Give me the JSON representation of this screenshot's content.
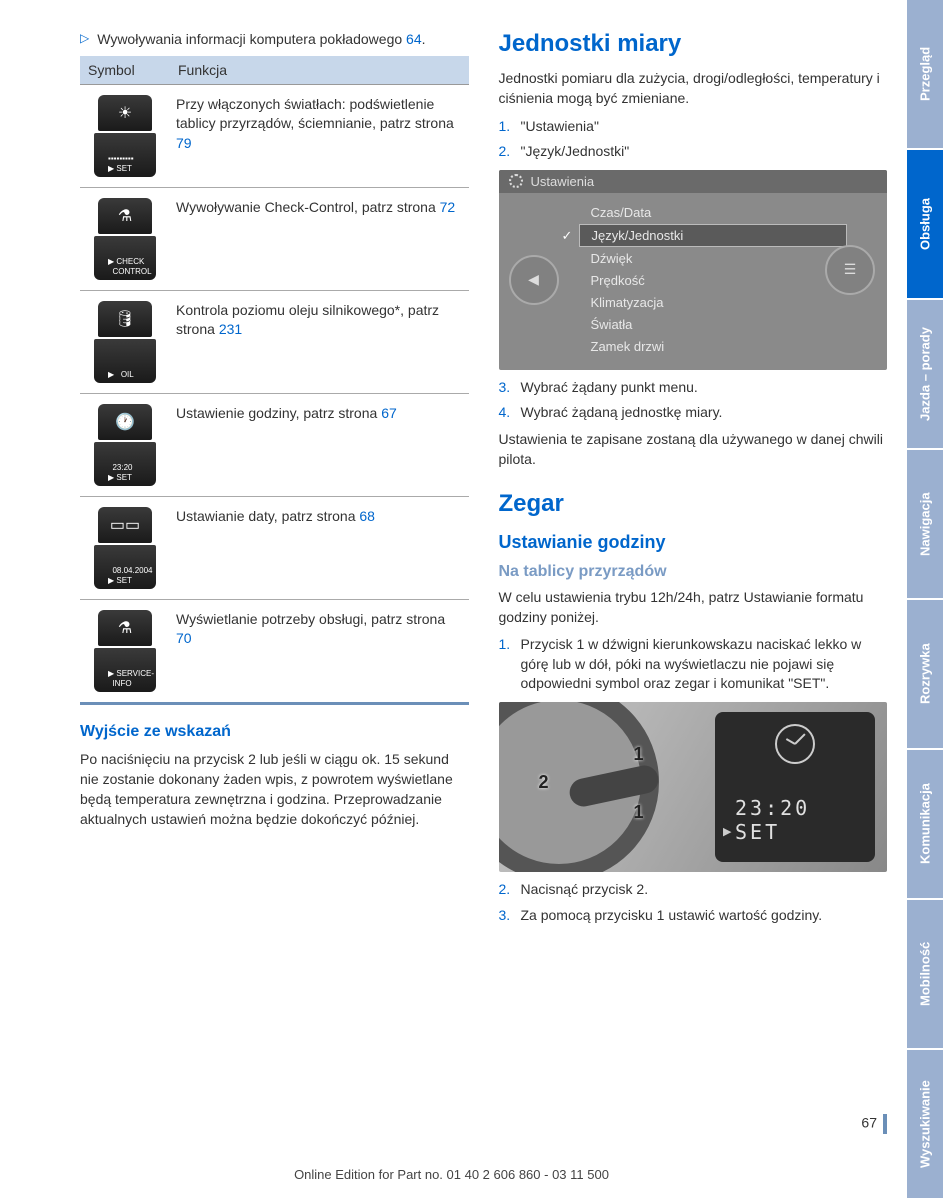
{
  "colors": {
    "link": "#0066cc",
    "heading": "#0066cc",
    "subheading": "#7a9bc4",
    "tableHeader": "#c7d7ea",
    "tableBorder": "#6b8fb8",
    "iconBg": "#2a2a2a",
    "sidebarActive": "#0066cc",
    "sidebarInactive": "#9bb0d0"
  },
  "leftCol": {
    "bulletText": "Wywoływania informacji komputera pokładowego  ",
    "bulletRef": "64",
    "bulletSuffix": ".",
    "table": {
      "headSymbol": "Symbol",
      "headFunc": "Funkcja",
      "rows": [
        {
          "iconTop": "☀",
          "iconBotLines": "▪▪▪▪▪▪▪▪▪\n▶ SET",
          "text": "Przy włączonych światłach: podświetlenie tablicy przyrządów, ściemnianie, patrz strona ",
          "ref": "79"
        },
        {
          "iconTop": "⚗",
          "iconBotLines": "▶ CHECK\n  CONTROL",
          "text": "Wywoływanie Check-Control, patrz strona ",
          "ref": "72"
        },
        {
          "iconTop": "🛢",
          "iconBotLines": "▶   OIL",
          "text": "Kontrola poziomu oleju silnikowego*, patrz strona ",
          "ref": "231"
        },
        {
          "iconTop": "🕐",
          "iconBotLines": "  23:20\n▶ SET",
          "text": "Ustawienie godziny, patrz strona ",
          "ref": "67"
        },
        {
          "iconTop": "▭▭",
          "iconBotLines": "  08.04.2004\n▶ SET",
          "text": "Ustawianie daty, patrz strona ",
          "ref": "68"
        },
        {
          "iconTop": "⚗",
          "iconBotLines": "▶ SERVICE-\n  INFO",
          "text": "Wyświetlanie potrzeby obsługi, patrz strona ",
          "ref": "70"
        }
      ]
    },
    "exitHeading": "Wyjście ze wskazań",
    "exitText": "Po naciśnięciu na przycisk 2 lub jeśli w ciągu ok. 15 sekund nie zostanie dokonany żaden wpis, z powrotem wyświetlane będą temperatura zewnętrzna i godzina. Przeprowadzanie aktualnych ustawień można będzie dokończyć później."
  },
  "rightCol": {
    "h1": "Jednostki miary",
    "intro": "Jednostki pomiaru dla zużycia, drogi/odległości, temperatury i ciśnienia mogą być zmieniane.",
    "steps1": [
      {
        "n": "1.",
        "t": "\"Ustawienia\""
      },
      {
        "n": "2.",
        "t": "\"Język/Jednostki\""
      }
    ],
    "menuScreenshot": {
      "title": "Ustawienia",
      "items": [
        "Czas/Data",
        "Język/Jednostki",
        "Dźwięk",
        "Prędkość",
        "Klimatyzacja",
        "Światła",
        "Zamek drzwi"
      ],
      "selectedIndex": 1
    },
    "steps2": [
      {
        "n": "3.",
        "t": "Wybrać żądany punkt menu."
      },
      {
        "n": "4.",
        "t": "Wybrać żądaną jednostkę miary."
      }
    ],
    "afterSteps": "Ustawienia te zapisane zostaną dla używanego w danej chwili pilota.",
    "h1b": "Zegar",
    "h2b": "Ustawianie godziny",
    "h3b": "Na tablicy przyrządów",
    "clockIntro": "W celu ustawienia trybu 12h/24h, patrz Ustawianie formatu godziny poniżej.",
    "clockSteps1": [
      {
        "n": "1.",
        "t": "Przycisk 1 w dźwigni kierunkowskazu naciskać lekko w górę lub w dół, póki na wyświetlaczu nie pojawi się odpowiedni symbol oraz zegar i komunikat \"SET\"."
      }
    ],
    "clockDisplay": {
      "time": "23:20",
      "label": "SET"
    },
    "clockSteps2": [
      {
        "n": "2.",
        "t": "Nacisnąć przycisk 2."
      },
      {
        "n": "3.",
        "t": "Za pomocą przycisku 1 ustawić wartość godziny."
      }
    ]
  },
  "sidebarTabs": [
    {
      "label": "Przegląd",
      "active": false
    },
    {
      "label": "Obsługa",
      "active": true
    },
    {
      "label": "Jazda – porady",
      "active": false
    },
    {
      "label": "Nawigacja",
      "active": false
    },
    {
      "label": "Rozrywka",
      "active": false
    },
    {
      "label": "Komunikacja",
      "active": false
    },
    {
      "label": "Mobilność",
      "active": false
    },
    {
      "label": "Wyszukiwanie",
      "active": false
    }
  ],
  "pageNumber": "67",
  "footer": "Online Edition for Part no. 01 40 2 606 860 - 03 11 500"
}
